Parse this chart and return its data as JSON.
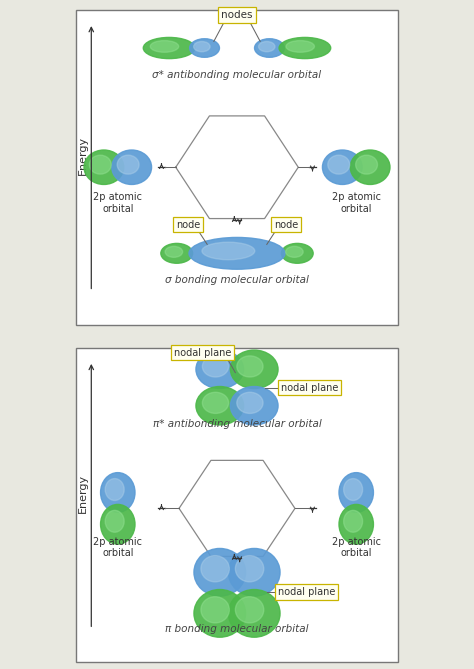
{
  "fig_width": 4.74,
  "fig_height": 6.69,
  "bg_color": "#e8e8e0",
  "panel_bg": "#ffffff",
  "blue_light": "#a8cce8",
  "blue_mid": "#5b9bd5",
  "blue_dark": "#2a6ab0",
  "green_light": "#90e090",
  "green_mid": "#4db84a",
  "green_dark": "#277a27",
  "line_color": "#888888",
  "arrow_color": "#333333",
  "label_box_color": "#fffff0",
  "label_box_edge": "#c8b400",
  "text_color": "#333333",
  "italic_text": "#444444",
  "panel1": {
    "title": "σ* antibonding molecular orbital",
    "bottom_label": "σ bonding molecular orbital",
    "nodes_label": "nodes",
    "node_left_label": "node",
    "node_right_label": "node",
    "left_label1": "2p atomic",
    "left_label2": "orbital",
    "right_label1": "2p atomic",
    "right_label2": "orbital",
    "energy_label": "Energy"
  },
  "panel2": {
    "title": "π* antibonding molecular orbital",
    "bottom_label": "π bonding molecular orbital",
    "nodal_plane_top": "nodal plane",
    "nodal_plane_mid": "nodal plane",
    "nodal_plane_bot": "nodal plane",
    "left_label1": "2p atomic",
    "left_label2": "orbital",
    "right_label1": "2p atomic",
    "right_label2": "orbital",
    "energy_label": "Energy"
  }
}
